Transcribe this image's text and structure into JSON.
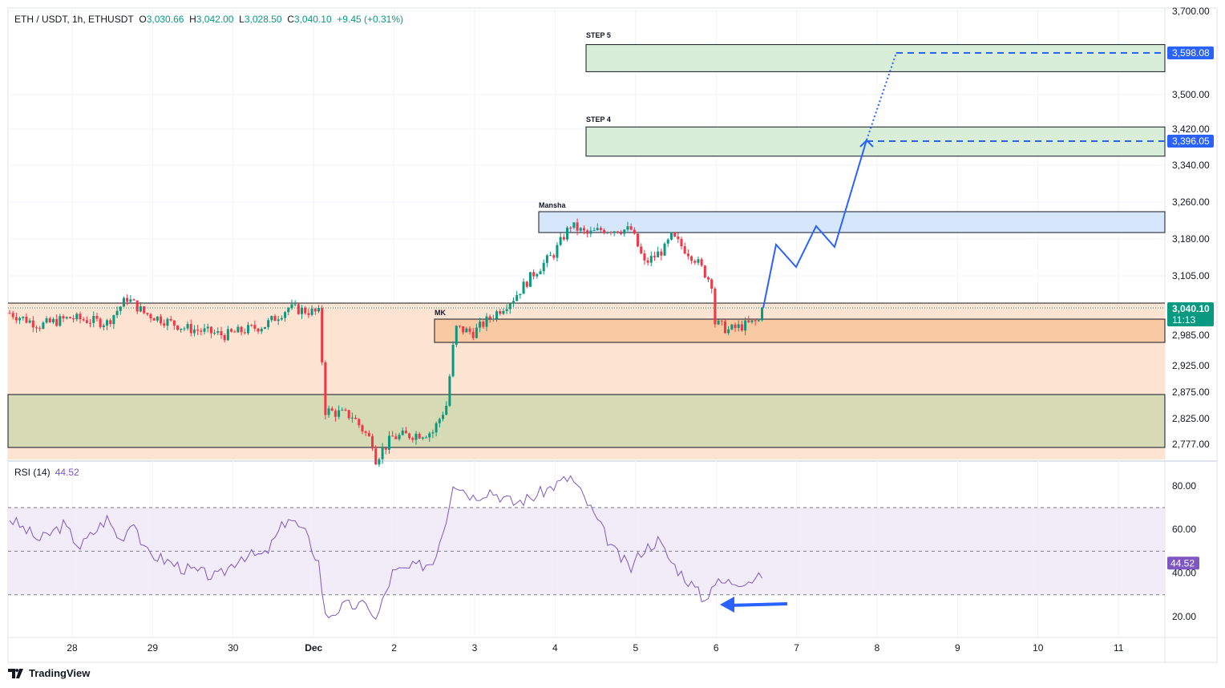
{
  "header": {
    "symbol": "ETH / USDT, 1h, ETHUSDT",
    "o_label": "O",
    "o": "3,030.66",
    "h_label": "H",
    "h": "3,042.00",
    "l_label": "L",
    "l": "3,028.50",
    "c_label": "C",
    "c": "3,040.10",
    "change": "+9.45 (+0.31%)"
  },
  "rsi_legend": {
    "label": "RSI (14)",
    "value": "44.52"
  },
  "brand": "TradingView",
  "colors": {
    "up": "#089981",
    "down": "#f23645",
    "projection": "#2962ff",
    "rsi": "#7e57c2"
  },
  "chart_data": [
    {
      "type": "candlestick",
      "title": "ETH / USDT, 1h",
      "price_ticks": [
        "3,700.00",
        "3,500.00",
        "3,420.00",
        "3,340.00",
        "3,260.00",
        "3,180.00",
        "3,105.00",
        "2,985.00",
        "2,925.00",
        "2,875.00",
        "2,825.00",
        "2,777.00"
      ],
      "price_tick_values": [
        3700,
        3500,
        3420,
        3340,
        3260,
        3180,
        3105,
        2985,
        2925,
        2875,
        2825,
        2777
      ],
      "time_ticks": [
        "28",
        "29",
        "30",
        "Dec",
        "2",
        "3",
        "4",
        "5",
        "6",
        "7",
        "8",
        "9",
        "10",
        "11"
      ],
      "close_path_hours": [
        0,
        9,
        18,
        29,
        35,
        40,
        52,
        64,
        76,
        83,
        92,
        94,
        102,
        108,
        109,
        114,
        126,
        130,
        132,
        132.5,
        138,
        143,
        150,
        156,
        162,
        167,
        172,
        176,
        185,
        189,
        195,
        197,
        204,
        209,
        210,
        214,
        226,
        229
      ],
      "close_path_prices": [
        3030,
        3005,
        3020,
        3010,
        3060,
        3030,
        3000,
        2985,
        3005,
        3040,
        3030,
        2840,
        2830,
        2780,
        2750,
        2790,
        2800,
        2850,
        2960,
        3000,
        2990,
        3020,
        3060,
        3110,
        3150,
        3210,
        3190,
        3200,
        3200,
        3130,
        3160,
        3185,
        3140,
        3090,
        3010,
        2995,
        3020,
        3040.1
      ],
      "current_price": {
        "label": "3,040.10",
        "countdown": "11:13"
      },
      "zones": [
        {
          "label": "STEP 5",
          "top": 3620,
          "bottom": 3555,
          "target": "3,598.08"
        },
        {
          "label": "STEP 4",
          "top": 3425,
          "bottom": 3360,
          "target": "3,396.05"
        },
        {
          "label": "Mansha",
          "top": 3240,
          "bottom": 3192
        },
        {
          "label": "MK",
          "top": 3015,
          "bottom": 2965
        }
      ],
      "projection_prices": [
        3040,
        3185,
        3133,
        3223,
        3176,
        3396.05,
        3598.08
      ]
    },
    {
      "type": "line",
      "title": "RSI (14)",
      "ticks": [
        "80.00",
        "60.00",
        "40.00",
        "20.00"
      ],
      "tick_values": [
        80,
        60,
        40,
        20
      ],
      "bands": [
        70,
        50,
        30
      ],
      "hours": [
        0,
        9,
        16,
        21,
        29,
        33,
        37,
        40,
        52,
        62,
        69,
        76,
        83,
        88,
        92,
        94,
        100,
        107,
        109,
        114,
        126,
        130,
        132,
        138,
        143,
        150,
        156,
        162,
        167,
        172,
        180,
        185,
        188,
        193,
        197,
        204,
        207,
        209,
        226,
        229
      ],
      "values": [
        65,
        55,
        62,
        52,
        65,
        55,
        65,
        50,
        42,
        38,
        48,
        48,
        66,
        58,
        45,
        20,
        25,
        25,
        18,
        40,
        45,
        65,
        82,
        75,
        78,
        72,
        75,
        80,
        84,
        72,
        50,
        42,
        50,
        55,
        45,
        33,
        27,
        35,
        38,
        44.52
      ],
      "current": "44.52"
    }
  ]
}
